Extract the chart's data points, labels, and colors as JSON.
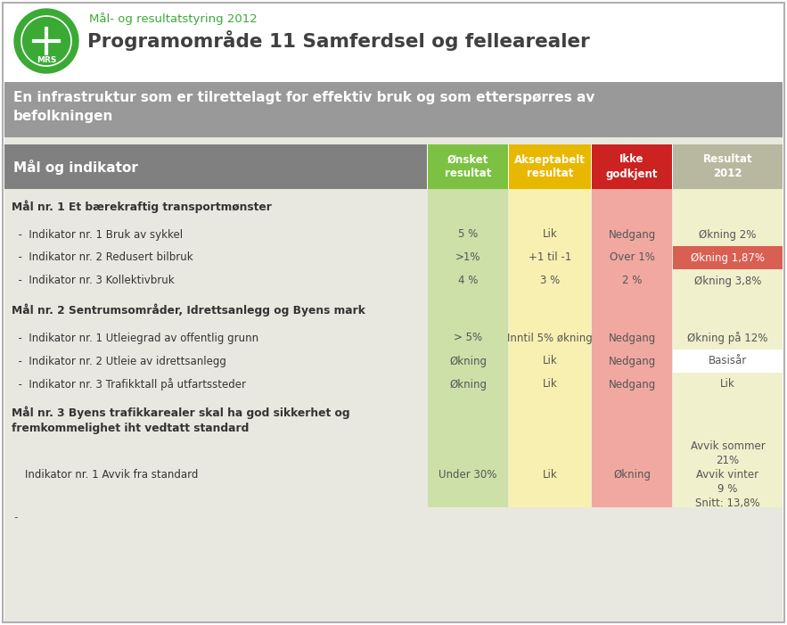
{
  "title_small": "Mål- og resultatstyring 2012",
  "title_large": "Programområde 11 Samferdsel og fellearealer",
  "banner_text": "En infrastruktur som er tilrettelagt for effektiv bruk og som etterspørres av\nbefolkningen",
  "header_col1": "Mål og indikator",
  "header_col2": "Ønsket\nresultat",
  "header_col3": "Akseptabelt\nresultat",
  "header_col4": "Ikke\ngodkjent",
  "header_col5": "Resultat\n2012",
  "col2_color": "#7dc142",
  "col3_color": "#e8b800",
  "col4_color": "#cc2222",
  "col5_color": "#b8b8a0",
  "header_bg": "#808080",
  "banner_bg": "#999999",
  "row_bg_green": "#cce0a8",
  "row_bg_yellow": "#f8f0b0",
  "row_bg_red": "#f0a8a0",
  "row_bg_result": "#f0f0cc",
  "row_bg_result_red": "#d95f52",
  "row_bg_result_white": "#ffffff",
  "table_bg": "#e8e8e0",
  "sections": [
    {
      "title": "Mål nr. 1 Et bærekraftig transportmønster",
      "title_lines": 1,
      "rows": [
        {
          "label": "  -  Indikator nr. 1 Bruk av sykkel",
          "col2": "5 %",
          "col3": "Lik",
          "col4": "Nedgang",
          "col5": "Økning 2%",
          "result_style": "normal"
        },
        {
          "label": "  -  Indikator nr. 2 Redusert bilbruk",
          "col2": ">1%",
          "col3": "+1 til -1",
          "col4": "Over 1%",
          "col5": "Økning 1,87%",
          "result_style": "red"
        },
        {
          "label": "  -  Indikator nr. 3 Kollektivbruk",
          "col2": "4 %",
          "col3": "3 %",
          "col4": "2 %",
          "col5": "Økning 3,8%",
          "result_style": "normal"
        }
      ]
    },
    {
      "title": "Mål nr. 2 Sentrumsområder, Idrettsanlegg og Byens mark",
      "title_lines": 1,
      "rows": [
        {
          "label": "  -  Indikator nr. 1 Utleiegrad av offentlig grunn",
          "col2": "> 5%",
          "col3": "Inntil 5% økning",
          "col4": "Nedgang",
          "col5": "Økning på 12%",
          "result_style": "normal"
        },
        {
          "label": "  -  Indikator nr. 2 Utleie av idrettsanlegg",
          "col2": "Økning",
          "col3": "Lik",
          "col4": "Nedgang",
          "col5": "Basisår",
          "result_style": "white"
        },
        {
          "label": "  -  Indikator nr. 3 Trafikktall på utfartssteder",
          "col2": "Økning",
          "col3": "Lik",
          "col4": "Nedgang",
          "col5": "Lik",
          "result_style": "normal"
        }
      ]
    },
    {
      "title": "Mål nr. 3 Byens trafikkarealer skal ha god sikkerhet og\nfremkommelighet iht vedtatt standard",
      "title_lines": 2,
      "rows": [
        {
          "label": "    Indikator nr. 1 Avvik fra standard",
          "col2": "Under 30%",
          "col3": "Lik",
          "col4": "Økning",
          "col5": "Avvik sommer\n21%\nAvvik vinter\n9 %\nSnitt: 13,8%",
          "result_style": "normal"
        }
      ]
    }
  ]
}
